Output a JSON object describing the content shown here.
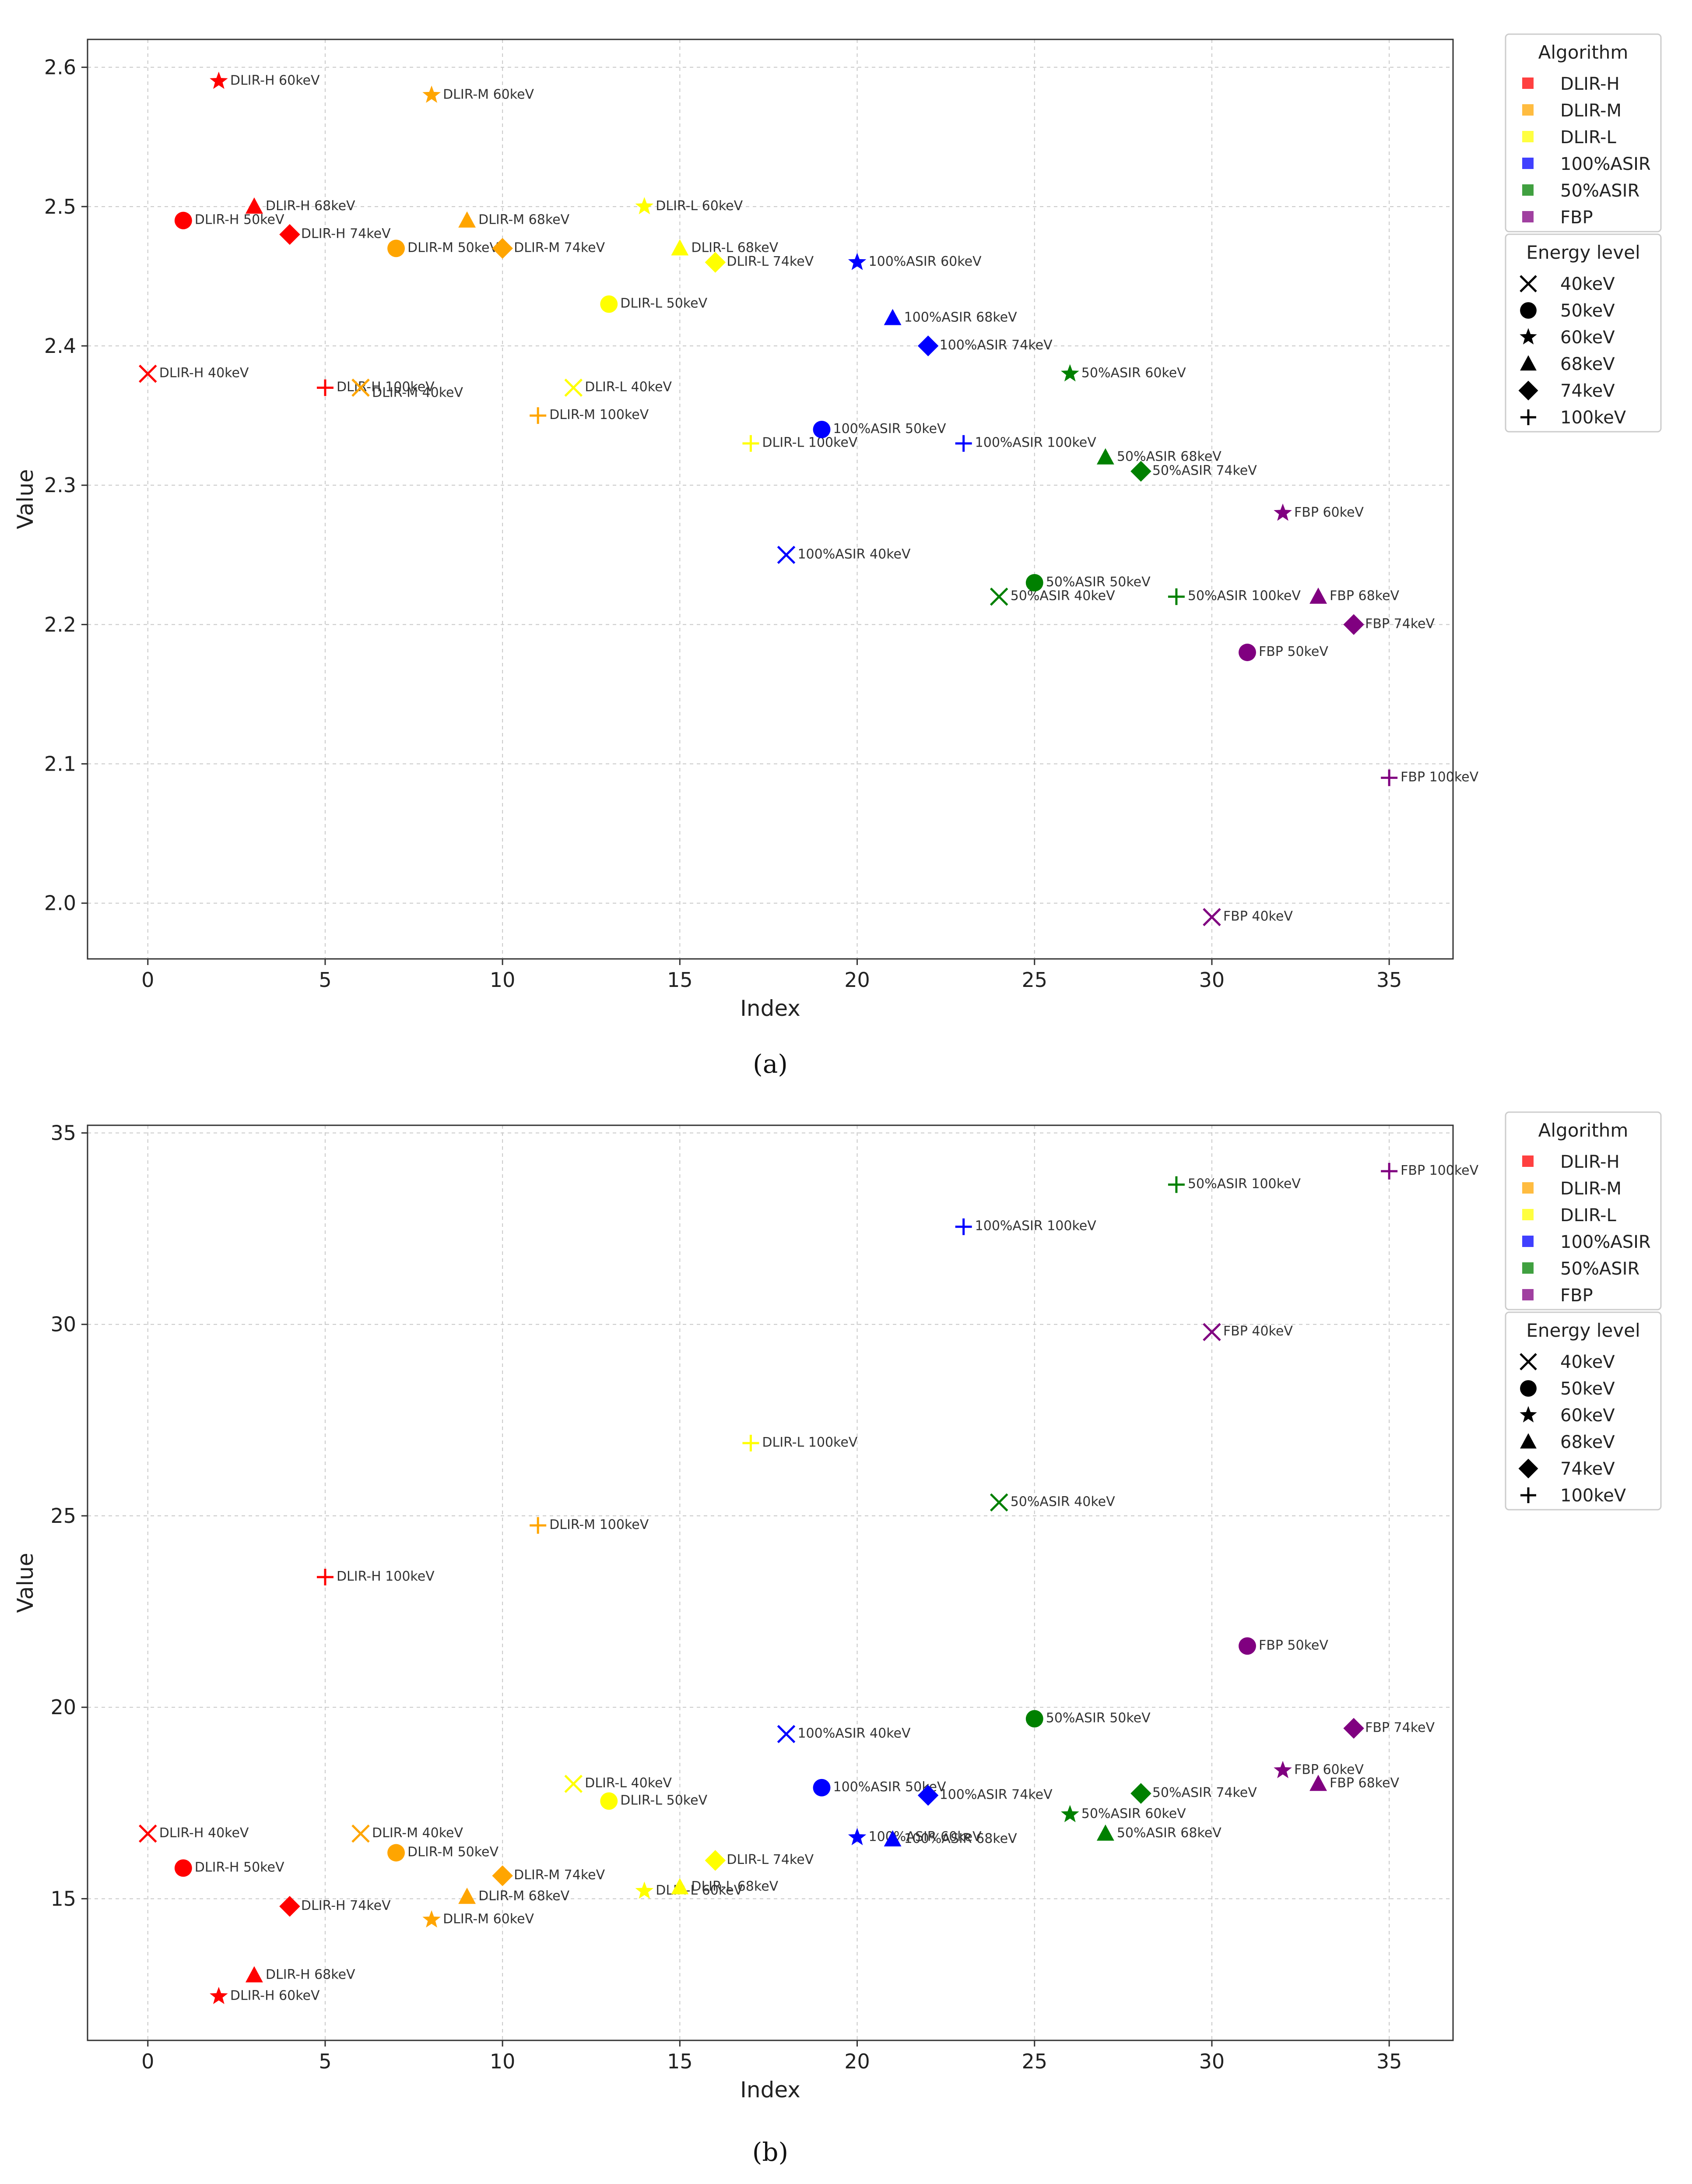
{
  "colors": {
    "DLIR-H": "#ff0000",
    "DLIR-M": "#ffa500",
    "DLIR-L": "#ffff00",
    "100%ASIR": "#0000ff",
    "50%ASIR": "#008000",
    "FBP": "#800080"
  },
  "energy_markers": {
    "40keV": "x",
    "50keV": "circle",
    "60keV": "star",
    "68keV": "triangle",
    "74keV": "diamond",
    "100keV": "plus"
  },
  "chart_data": [
    {
      "type": "scatter",
      "caption": "(a)",
      "xlabel": "Index",
      "ylabel": "Value",
      "xlim": [
        -1.7,
        36.8
      ],
      "ylim": [
        1.96,
        2.62
      ],
      "xticks": [
        0,
        5,
        10,
        15,
        20,
        25,
        30,
        35
      ],
      "yticks": [
        2.0,
        2.1,
        2.2,
        2.3,
        2.4,
        2.5,
        2.6
      ],
      "ytick_labels": [
        "2.0",
        "2.1",
        "2.2",
        "2.3",
        "2.4",
        "2.5",
        "2.6"
      ],
      "grid": true,
      "legend_algorithm": {
        "title": "Algorithm",
        "items": [
          "DLIR-H",
          "DLIR-M",
          "DLIR-L",
          "100%ASIR",
          "50%ASIR",
          "FBP"
        ]
      },
      "legend_energy": {
        "title": "Energy level",
        "items": [
          "40keV",
          "50keV",
          "60keV",
          "68keV",
          "74keV",
          "100keV"
        ]
      },
      "points": [
        {
          "x": 0,
          "y": 2.38,
          "algo": "DLIR-H",
          "energy": "40keV",
          "label": "DLIR-H 40keV"
        },
        {
          "x": 1,
          "y": 2.49,
          "algo": "DLIR-H",
          "energy": "50keV",
          "label": "DLIR-H 50keV"
        },
        {
          "x": 2,
          "y": 2.59,
          "algo": "DLIR-H",
          "energy": "60keV",
          "label": "DLIR-H 60keV"
        },
        {
          "x": 3,
          "y": 2.5,
          "algo": "DLIR-H",
          "energy": "68keV",
          "label": "DLIR-H 68keV"
        },
        {
          "x": 4,
          "y": 2.48,
          "algo": "DLIR-H",
          "energy": "74keV",
          "label": "DLIR-H 74keV"
        },
        {
          "x": 5,
          "y": 2.37,
          "algo": "DLIR-H",
          "energy": "100keV",
          "label": "DLIR-H 100keV"
        },
        {
          "x": 6,
          "y": 2.37,
          "algo": "DLIR-M",
          "energy": "40keV",
          "label": "DLIR-M 40keV",
          "dy": 13
        },
        {
          "x": 7,
          "y": 2.47,
          "algo": "DLIR-M",
          "energy": "50keV",
          "label": "DLIR-M 50keV"
        },
        {
          "x": 8,
          "y": 2.58,
          "algo": "DLIR-M",
          "energy": "60keV",
          "label": "DLIR-M 60keV"
        },
        {
          "x": 9,
          "y": 2.49,
          "algo": "DLIR-M",
          "energy": "68keV",
          "label": "DLIR-M 68keV"
        },
        {
          "x": 10,
          "y": 2.47,
          "algo": "DLIR-M",
          "energy": "74keV",
          "label": "DLIR-M 74keV"
        },
        {
          "x": 11,
          "y": 2.35,
          "algo": "DLIR-M",
          "energy": "100keV",
          "label": "DLIR-M 100keV"
        },
        {
          "x": 12,
          "y": 2.37,
          "algo": "DLIR-L",
          "energy": "40keV",
          "label": "DLIR-L 40keV"
        },
        {
          "x": 13,
          "y": 2.43,
          "algo": "DLIR-L",
          "energy": "50keV",
          "label": "DLIR-L 50keV"
        },
        {
          "x": 14,
          "y": 2.5,
          "algo": "DLIR-L",
          "energy": "60keV",
          "label": "DLIR-L 60keV"
        },
        {
          "x": 15,
          "y": 2.47,
          "algo": "DLIR-L",
          "energy": "68keV",
          "label": "DLIR-L 68keV"
        },
        {
          "x": 16,
          "y": 2.46,
          "algo": "DLIR-L",
          "energy": "74keV",
          "label": "DLIR-L 74keV"
        },
        {
          "x": 17,
          "y": 2.33,
          "algo": "DLIR-L",
          "energy": "100keV",
          "label": "DLIR-L 100keV"
        },
        {
          "x": 18,
          "y": 2.25,
          "algo": "100%ASIR",
          "energy": "40keV",
          "label": "100%ASIR 40keV"
        },
        {
          "x": 19,
          "y": 2.34,
          "algo": "100%ASIR",
          "energy": "50keV",
          "label": "100%ASIR 50keV"
        },
        {
          "x": 20,
          "y": 2.46,
          "algo": "100%ASIR",
          "energy": "60keV",
          "label": "100%ASIR 60keV"
        },
        {
          "x": 21,
          "y": 2.42,
          "algo": "100%ASIR",
          "energy": "68keV",
          "label": "100%ASIR 68keV"
        },
        {
          "x": 22,
          "y": 2.4,
          "algo": "100%ASIR",
          "energy": "74keV",
          "label": "100%ASIR 74keV"
        },
        {
          "x": 23,
          "y": 2.33,
          "algo": "100%ASIR",
          "energy": "100keV",
          "label": "100%ASIR 100keV"
        },
        {
          "x": 24,
          "y": 2.22,
          "algo": "50%ASIR",
          "energy": "40keV",
          "label": "50%ASIR 40keV"
        },
        {
          "x": 25,
          "y": 2.23,
          "algo": "50%ASIR",
          "energy": "50keV",
          "label": "50%ASIR 50keV"
        },
        {
          "x": 26,
          "y": 2.38,
          "algo": "50%ASIR",
          "energy": "60keV",
          "label": "50%ASIR 60keV"
        },
        {
          "x": 27,
          "y": 2.32,
          "algo": "50%ASIR",
          "energy": "68keV",
          "label": "50%ASIR 68keV"
        },
        {
          "x": 28,
          "y": 2.31,
          "algo": "50%ASIR",
          "energy": "74keV",
          "label": "50%ASIR 74keV"
        },
        {
          "x": 29,
          "y": 2.22,
          "algo": "50%ASIR",
          "energy": "100keV",
          "label": "50%ASIR 100keV"
        },
        {
          "x": 30,
          "y": 1.99,
          "algo": "FBP",
          "energy": "40keV",
          "label": "FBP 40keV"
        },
        {
          "x": 31,
          "y": 2.18,
          "algo": "FBP",
          "energy": "50keV",
          "label": "FBP 50keV"
        },
        {
          "x": 32,
          "y": 2.28,
          "algo": "FBP",
          "energy": "60keV",
          "label": "FBP 60keV"
        },
        {
          "x": 33,
          "y": 2.22,
          "algo": "FBP",
          "energy": "68keV",
          "label": "FBP 68keV"
        },
        {
          "x": 34,
          "y": 2.2,
          "algo": "FBP",
          "energy": "74keV",
          "label": "FBP 74keV"
        },
        {
          "x": 35,
          "y": 2.09,
          "algo": "FBP",
          "energy": "100keV",
          "label": "FBP 100keV"
        }
      ]
    },
    {
      "type": "scatter",
      "caption": "(b)",
      "xlabel": "Index",
      "ylabel": "Value",
      "xlim": [
        -1.7,
        36.8
      ],
      "ylim": [
        11.3,
        35.2
      ],
      "xticks": [
        0,
        5,
        10,
        15,
        20,
        25,
        30,
        35
      ],
      "yticks": [
        15,
        20,
        25,
        30,
        35
      ],
      "ytick_labels": [
        "15",
        "20",
        "25",
        "30",
        "35"
      ],
      "grid": true,
      "legend_algorithm": {
        "title": "Algorithm",
        "items": [
          "DLIR-H",
          "DLIR-M",
          "DLIR-L",
          "100%ASIR",
          "50%ASIR",
          "FBP"
        ]
      },
      "legend_energy": {
        "title": "Energy level",
        "items": [
          "40keV",
          "50keV",
          "60keV",
          "68keV",
          "74keV",
          "100keV"
        ]
      },
      "points": [
        {
          "x": 0,
          "y": 16.7,
          "algo": "DLIR-H",
          "energy": "40keV",
          "label": "DLIR-H 40keV"
        },
        {
          "x": 1,
          "y": 15.8,
          "algo": "DLIR-H",
          "energy": "50keV",
          "label": "DLIR-H 50keV"
        },
        {
          "x": 2,
          "y": 12.45,
          "algo": "DLIR-H",
          "energy": "60keV",
          "label": "DLIR-H 60keV"
        },
        {
          "x": 3,
          "y": 13.0,
          "algo": "DLIR-H",
          "energy": "68keV",
          "label": "DLIR-H 68keV"
        },
        {
          "x": 4,
          "y": 14.8,
          "algo": "DLIR-H",
          "energy": "74keV",
          "label": "DLIR-H 74keV"
        },
        {
          "x": 5,
          "y": 23.4,
          "algo": "DLIR-H",
          "energy": "100keV",
          "label": "DLIR-H 100keV"
        },
        {
          "x": 6,
          "y": 16.7,
          "algo": "DLIR-M",
          "energy": "40keV",
          "label": "DLIR-M 40keV"
        },
        {
          "x": 7,
          "y": 16.2,
          "algo": "DLIR-M",
          "energy": "50keV",
          "label": "DLIR-M 50keV"
        },
        {
          "x": 8,
          "y": 14.45,
          "algo": "DLIR-M",
          "energy": "60keV",
          "label": "DLIR-M 60keV"
        },
        {
          "x": 9,
          "y": 15.05,
          "algo": "DLIR-M",
          "energy": "68keV",
          "label": "DLIR-M 68keV"
        },
        {
          "x": 10,
          "y": 15.6,
          "algo": "DLIR-M",
          "energy": "74keV",
          "label": "DLIR-M 74keV"
        },
        {
          "x": 11,
          "y": 24.75,
          "algo": "DLIR-M",
          "energy": "100keV",
          "label": "DLIR-M 100keV"
        },
        {
          "x": 12,
          "y": 18.0,
          "algo": "DLIR-L",
          "energy": "40keV",
          "label": "DLIR-L 40keV"
        },
        {
          "x": 13,
          "y": 17.55,
          "algo": "DLIR-L",
          "energy": "50keV",
          "label": "DLIR-L 50keV"
        },
        {
          "x": 14,
          "y": 15.2,
          "algo": "DLIR-L",
          "energy": "60keV",
          "label": "DLIR-L 60keV"
        },
        {
          "x": 15,
          "y": 15.3,
          "algo": "DLIR-L",
          "energy": "68keV",
          "label": "DLIR-L 68keV"
        },
        {
          "x": 16,
          "y": 16.0,
          "algo": "DLIR-L",
          "energy": "74keV",
          "label": "DLIR-L 74keV"
        },
        {
          "x": 17,
          "y": 26.9,
          "algo": "DLIR-L",
          "energy": "100keV",
          "label": "DLIR-L 100keV"
        },
        {
          "x": 18,
          "y": 19.3,
          "algo": "100%ASIR",
          "energy": "40keV",
          "label": "100%ASIR 40keV"
        },
        {
          "x": 19,
          "y": 17.9,
          "algo": "100%ASIR",
          "energy": "50keV",
          "label": "100%ASIR 50keV"
        },
        {
          "x": 20,
          "y": 16.6,
          "algo": "100%ASIR",
          "energy": "60keV",
          "label": "100%ASIR 60keV"
        },
        {
          "x": 21,
          "y": 16.55,
          "algo": "100%ASIR",
          "energy": "68keV",
          "label": "100%ASIR 68keV"
        },
        {
          "x": 22,
          "y": 17.7,
          "algo": "100%ASIR",
          "energy": "74keV",
          "label": "100%ASIR 74keV"
        },
        {
          "x": 23,
          "y": 32.55,
          "algo": "100%ASIR",
          "energy": "100keV",
          "label": "100%ASIR 100keV"
        },
        {
          "x": 24,
          "y": 25.35,
          "algo": "50%ASIR",
          "energy": "40keV",
          "label": "50%ASIR 40keV"
        },
        {
          "x": 25,
          "y": 19.7,
          "algo": "50%ASIR",
          "energy": "50keV",
          "label": "50%ASIR 50keV"
        },
        {
          "x": 26,
          "y": 17.2,
          "algo": "50%ASIR",
          "energy": "60keV",
          "label": "50%ASIR 60keV"
        },
        {
          "x": 27,
          "y": 16.7,
          "algo": "50%ASIR",
          "energy": "68keV",
          "label": "50%ASIR 68keV"
        },
        {
          "x": 28,
          "y": 17.75,
          "algo": "50%ASIR",
          "energy": "74keV",
          "label": "50%ASIR 74keV"
        },
        {
          "x": 29,
          "y": 33.65,
          "algo": "50%ASIR",
          "energy": "100keV",
          "label": "50%ASIR 100keV"
        },
        {
          "x": 30,
          "y": 29.8,
          "algo": "FBP",
          "energy": "40keV",
          "label": "FBP 40keV"
        },
        {
          "x": 31,
          "y": 21.6,
          "algo": "FBP",
          "energy": "50keV",
          "label": "FBP 50keV"
        },
        {
          "x": 32,
          "y": 18.35,
          "algo": "FBP",
          "energy": "60keV",
          "label": "FBP 60keV"
        },
        {
          "x": 33,
          "y": 18.0,
          "algo": "FBP",
          "energy": "68keV",
          "label": "FBP 68keV"
        },
        {
          "x": 34,
          "y": 19.45,
          "algo": "FBP",
          "energy": "74keV",
          "label": "FBP 74keV"
        },
        {
          "x": 35,
          "y": 34.0,
          "algo": "FBP",
          "energy": "100keV",
          "label": "FBP 100keV"
        }
      ]
    }
  ]
}
